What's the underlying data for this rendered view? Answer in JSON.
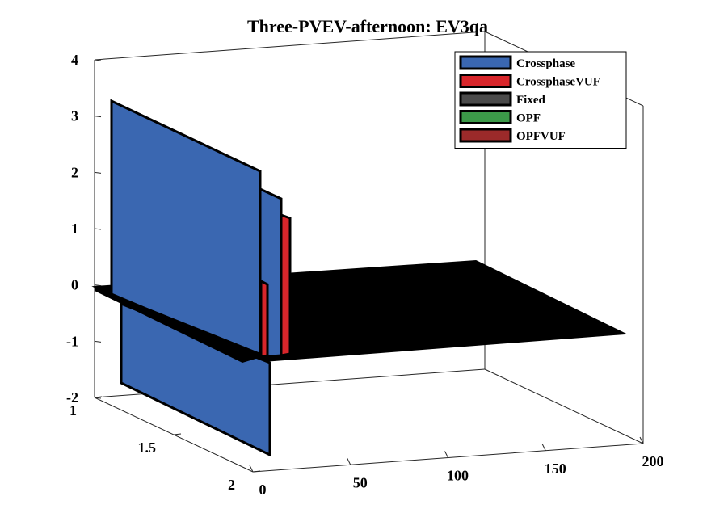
{
  "chart_data": {
    "type": "bar3d",
    "title": "Three-PVEV-afternoon: EV3qa",
    "xlabel": "",
    "ylabel": "",
    "zlabel": "",
    "xlim": [
      0,
      200
    ],
    "ylim": [
      1,
      2
    ],
    "zlim": [
      -2,
      4
    ],
    "x_ticks": [
      "0",
      "50",
      "100",
      "150",
      "200"
    ],
    "y_ticks": [
      "1",
      "1.5",
      "2"
    ],
    "z_ticks": [
      "-2",
      "-1",
      "0",
      "1",
      "2",
      "3",
      "4"
    ],
    "grid": false,
    "legend_position": "top-right",
    "series": [
      {
        "name": "Crossphase",
        "color": "#3a67b1",
        "points": [
          {
            "x": 0,
            "z": 3.3
          },
          {
            "x": 0,
            "z": -1.8
          },
          {
            "x": 20,
            "z": 1.4
          }
        ]
      },
      {
        "name": "CrossphaseVUF",
        "color": "#d8262b",
        "points": [
          {
            "x": 10,
            "z": 0.0
          },
          {
            "x": 20,
            "z": 1.2
          }
        ]
      },
      {
        "name": "Fixed",
        "color": "#4b4b4b",
        "points": []
      },
      {
        "name": "OPF",
        "color": "#3c9a49",
        "points": []
      },
      {
        "name": "OPFVUF",
        "color": "#9b2a2a",
        "points": []
      }
    ],
    "baseline_plane_color": "#000000"
  }
}
